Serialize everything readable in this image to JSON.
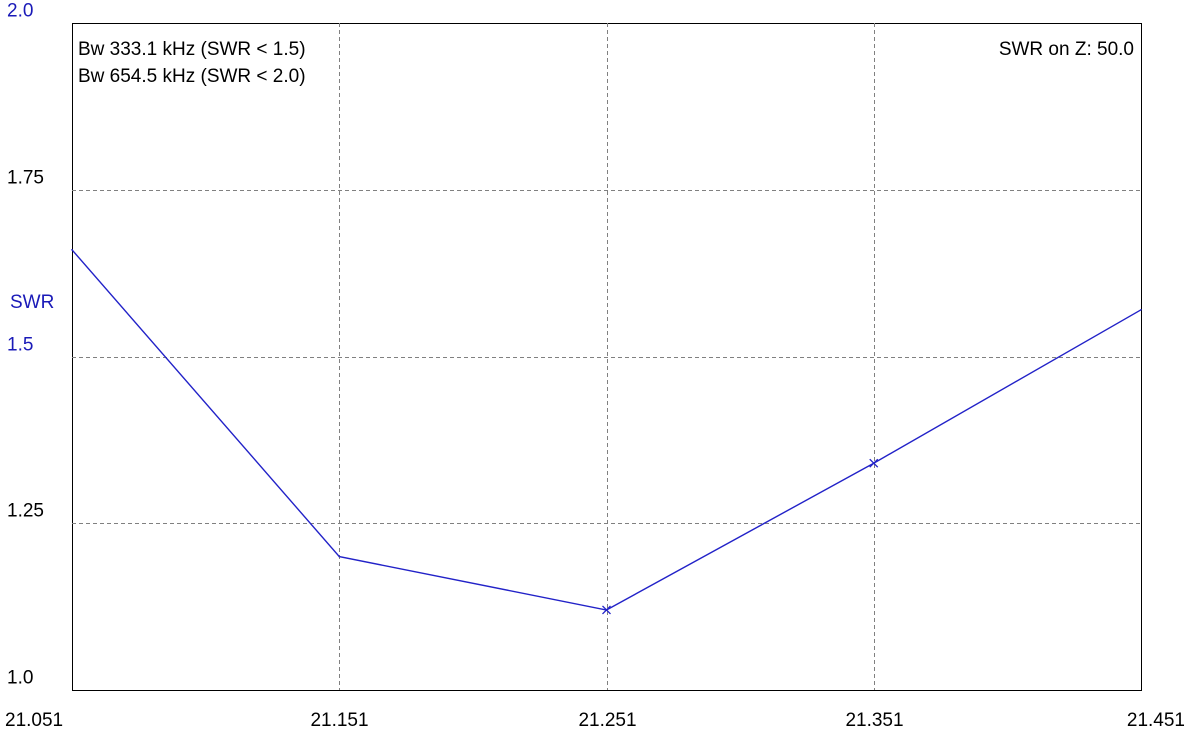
{
  "chart_data": {
    "type": "line",
    "ylabel": "SWR",
    "xlabel": "",
    "title": "",
    "xlim": [
      21.051,
      21.451
    ],
    "ylim": [
      1.0,
      2.0
    ],
    "x_ticks": [
      "21.051",
      "21.151",
      "21.251",
      "21.351",
      "21.451"
    ],
    "y_ticks": [
      "1.0",
      "1.25",
      "1.5",
      "1.75",
      "2.0"
    ],
    "y_tick_values": [
      1.0,
      1.25,
      1.5,
      1.75,
      2.0
    ],
    "y_ticks_accent": [
      false,
      false,
      true,
      false,
      true
    ],
    "grid": true,
    "annotations": {
      "top_left": [
        "Bw 333.1 kHz (SWR < 1.5)",
        "Bw 654.5 kHz (SWR < 2.0)"
      ],
      "top_right": "SWR on Z: 50.0"
    },
    "series": [
      {
        "x": [
          21.051,
          21.151,
          21.251,
          21.351,
          21.451
        ],
        "y": [
          1.66,
          1.2,
          1.12,
          1.34,
          1.57
        ],
        "markers": [
          21.251,
          21.351
        ]
      }
    ],
    "colors": {
      "series": "#2222c8",
      "accent_text": "#1a1ab8",
      "grid": "#808080",
      "frame": "#000000"
    }
  }
}
